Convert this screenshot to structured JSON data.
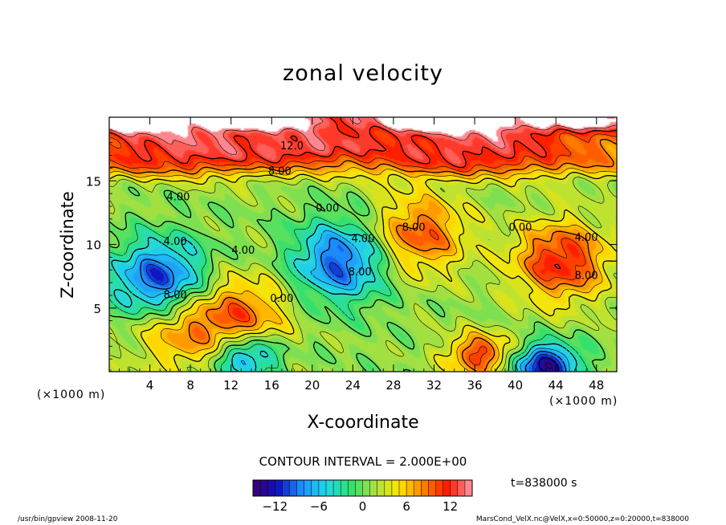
{
  "chart_data": {
    "type": "heatmap",
    "title": "zonal velocity",
    "xlabel": "X-coordinate",
    "ylabel": "Z-coordinate",
    "x_unit_label": "(×1000 m)",
    "z_unit_label": "(×1000 m)",
    "x_range": [
      0,
      50
    ],
    "z_range": [
      0,
      20
    ],
    "x_ticks": [
      "4",
      "8",
      "12",
      "16",
      "20",
      "24",
      "28",
      "32",
      "36",
      "40",
      "44",
      "48"
    ],
    "z_ticks": [
      "5",
      "10",
      "15"
    ],
    "contour_interval_text": "CONTOUR INTERVAL = 2.000E+00",
    "contour_labels": [
      {
        "text": "12.0",
        "x": 18.0,
        "z": 17.7
      },
      {
        "text": "8.00",
        "x": 16.8,
        "z": 15.7
      },
      {
        "text": "4.00",
        "x": 6.8,
        "z": 13.7
      },
      {
        "text": "0.00",
        "x": 21.5,
        "z": 12.8
      },
      {
        "text": "4.00",
        "x": 6.5,
        "z": 10.2
      },
      {
        "text": "4.00",
        "x": 13.2,
        "z": 9.5
      },
      {
        "text": "4.00",
        "x": 25.0,
        "z": 10.4
      },
      {
        "text": "8.00",
        "x": 6.5,
        "z": 6.0
      },
      {
        "text": "8.00",
        "x": 24.7,
        "z": 7.8
      },
      {
        "text": "8.00",
        "x": 30.0,
        "z": 11.3
      },
      {
        "text": "0.00",
        "x": 17.0,
        "z": 5.7
      },
      {
        "text": "0.00",
        "x": 40.5,
        "z": 11.3
      },
      {
        "text": "4.00",
        "x": 47.0,
        "z": 10.5
      },
      {
        "text": "8.00",
        "x": 47.0,
        "z": 7.5
      }
    ],
    "colorbar": {
      "min": -15,
      "max": 15,
      "ticks": [
        "−12",
        "−6",
        "0",
        "6",
        "12"
      ],
      "tick_values": [
        -12,
        -6,
        0,
        6,
        12
      ],
      "color_stops": [
        "#3a0070",
        "#1010c0",
        "#1e90ff",
        "#22d8e8",
        "#30e070",
        "#a8e040",
        "#ffe600",
        "#ff8000",
        "#ff1a00",
        "#ff9aa8"
      ]
    },
    "features": [
      {
        "kind": "jet",
        "name": "upper eastward jet",
        "z": 17.0,
        "value": 11
      },
      {
        "kind": "cell",
        "x": 5.0,
        "z": 7.2,
        "value": -12
      },
      {
        "kind": "cell",
        "x": 22.8,
        "z": 8.7,
        "value": -11
      },
      {
        "kind": "cell",
        "x": 30.5,
        "z": 10.8,
        "value": 9
      },
      {
        "kind": "cell",
        "x": 44.5,
        "z": 8.7,
        "value": 11
      },
      {
        "kind": "cell",
        "x": 13.0,
        "z": 4.5,
        "value": 8
      },
      {
        "kind": "cell",
        "x": 7.0,
        "z": 3.3,
        "value": 7
      },
      {
        "kind": "cell",
        "x": 36.5,
        "z": 1.3,
        "value": 10
      },
      {
        "kind": "cell",
        "x": 13.5,
        "z": 1.2,
        "value": -10
      },
      {
        "kind": "cell",
        "x": 43.0,
        "z": 0.5,
        "value": -14
      }
    ]
  },
  "time_label": "t=838000 s",
  "footer": {
    "left": "/usr/bin/gpview   2008-11-20",
    "right": "MarsCond_VelX.nc@VelX,x=0:50000,z=0:20000,t=838000"
  }
}
